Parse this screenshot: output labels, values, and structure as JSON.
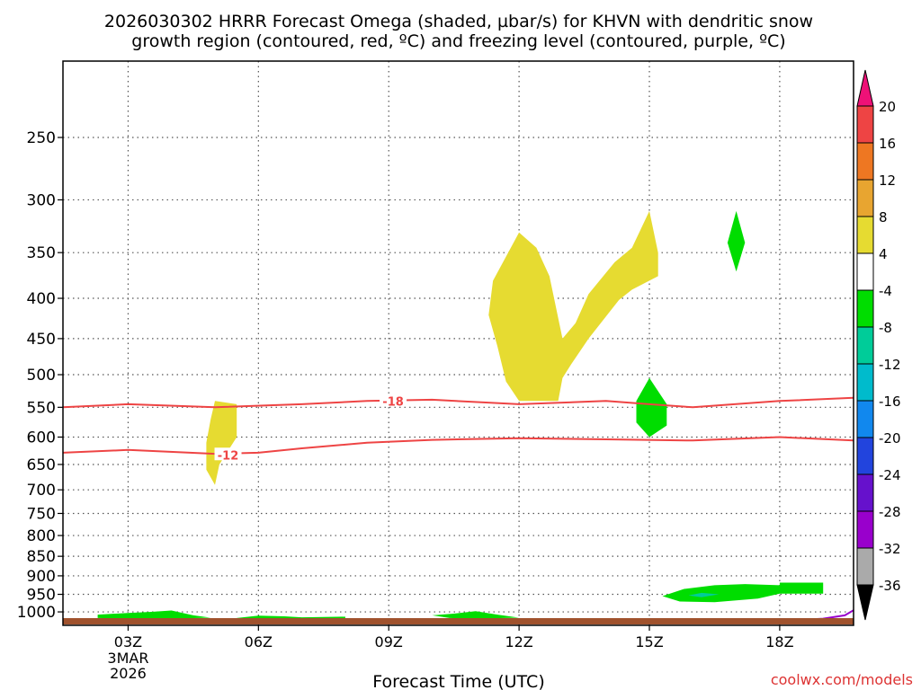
{
  "title_line1": "2026030302 HRRR Forecast Omega (shaded, µbar/s) for KHVN with dendritic snow",
  "title_line2": "growth region (contoured, red, ºC) and freezing level (contoured, purple, ºC)",
  "credit": "coolwx.com/models",
  "colors": {
    "frame": "#000000",
    "grid": "#555555",
    "dgz_contour": "#ee4444",
    "freezing_level": "#9900cc",
    "ground": "#a0522d",
    "omega_pos_4_8": "#e6db31",
    "omega_neg_4_8": "#00dd00",
    "omega_neg_8_12": "#00cc99"
  },
  "chart_data": {
    "type": "heatmap",
    "xlabel": "Forecast Time (UTC)",
    "ylabel": "",
    "x_unit": "hours after 2026-03-03 03Z",
    "x_range": [
      1.5,
      19.7
    ],
    "x_ticks": [
      {
        "value": 3,
        "label": "03Z",
        "extra": [
          "3MAR",
          "2026"
        ]
      },
      {
        "value": 6,
        "label": "06Z"
      },
      {
        "value": 9,
        "label": "09Z"
      },
      {
        "value": 12,
        "label": "12Z"
      },
      {
        "value": 15,
        "label": "15Z"
      },
      {
        "value": 18,
        "label": "18Z"
      }
    ],
    "y_unit": "pressure (hPa), log scale, inverted",
    "y_range": [
      1040,
      200
    ],
    "y_ticks": [
      250,
      300,
      350,
      400,
      450,
      500,
      550,
      600,
      650,
      700,
      750,
      800,
      850,
      900,
      950,
      1000
    ],
    "grid": true,
    "colorbar": {
      "levels": [
        20,
        16,
        12,
        8,
        4,
        -4,
        -8,
        -12,
        -16,
        -20,
        -24,
        -28,
        -32,
        -36
      ],
      "colors": [
        "#ee1177",
        "#ee4444",
        "#ee7722",
        "#e8a530",
        "#e6db31",
        "#ffffff",
        "#00dd00",
        "#00cc99",
        "#00bbcc",
        "#1188ee",
        "#2244dd",
        "#6611cc",
        "#9900cc",
        "#aaaaaa",
        "#000000"
      ]
    },
    "contours": [
      {
        "label": "-18",
        "label_at": [
          9.1,
          540
        ],
        "points": [
          [
            1.5,
            550
          ],
          [
            3,
            545
          ],
          [
            5,
            550
          ],
          [
            7,
            545
          ],
          [
            8.5,
            540
          ],
          [
            10,
            538
          ],
          [
            12,
            545
          ],
          [
            14,
            540
          ],
          [
            15,
            545
          ],
          [
            16,
            550
          ],
          [
            18,
            540
          ],
          [
            19.7,
            535
          ]
        ]
      },
      {
        "label": "-12",
        "label_at": [
          5.3,
          632
        ],
        "points": [
          [
            1.5,
            628
          ],
          [
            3,
            623
          ],
          [
            5,
            630
          ],
          [
            6,
            628
          ],
          [
            7,
            620
          ],
          [
            8.5,
            610
          ],
          [
            10,
            605
          ],
          [
            12,
            602
          ],
          [
            14,
            604
          ],
          [
            16,
            606
          ],
          [
            18,
            600
          ],
          [
            19.7,
            606
          ]
        ]
      }
    ],
    "freezing_level": [
      [
        16.4,
        1033
      ],
      [
        17,
        1030
      ],
      [
        18,
        1027
      ],
      [
        19,
        1020
      ],
      [
        19.5,
        1010
      ],
      [
        19.7,
        995
      ]
    ],
    "omega_regions": [
      {
        "level": "4 to 8",
        "color": "#e6db31",
        "points": [
          [
            12,
            330
          ],
          [
            12.4,
            345
          ],
          [
            12.7,
            375
          ],
          [
            13,
            450
          ],
          [
            13.3,
            430
          ],
          [
            13.6,
            395
          ],
          [
            14.2,
            360
          ],
          [
            14.6,
            345
          ],
          [
            15,
            310
          ],
          [
            15.2,
            350
          ],
          [
            15.2,
            375
          ],
          [
            14.6,
            390
          ],
          [
            14.3,
            402
          ],
          [
            13.6,
            450
          ],
          [
            13.2,
            485
          ],
          [
            13,
            505
          ],
          [
            12.9,
            540
          ],
          [
            12,
            540
          ],
          [
            11.7,
            510
          ],
          [
            11.5,
            460
          ],
          [
            11.3,
            420
          ],
          [
            11.4,
            380
          ]
        ]
      },
      {
        "level": "4 to 8",
        "color": "#e6db31",
        "points": [
          [
            5,
            540
          ],
          [
            5.5,
            545
          ],
          [
            5.5,
            600
          ],
          [
            5.1,
            650
          ],
          [
            5,
            690
          ],
          [
            4.8,
            660
          ],
          [
            4.8,
            610
          ],
          [
            4.9,
            570
          ]
        ]
      },
      {
        "level": "-4 to -8",
        "color": "#00dd00",
        "points": [
          [
            15,
            505
          ],
          [
            15.4,
            545
          ],
          [
            15.4,
            580
          ],
          [
            15,
            600
          ],
          [
            14.7,
            575
          ],
          [
            14.7,
            540
          ]
        ]
      },
      {
        "level": "-4 to -8",
        "color": "#00dd00",
        "points": [
          [
            17,
            310
          ],
          [
            17.2,
            340
          ],
          [
            17,
            370
          ],
          [
            16.8,
            340
          ]
        ]
      },
      {
        "level": "-4 to -8",
        "color": "#00dd00",
        "points": [
          [
            15.3,
            955
          ],
          [
            15.8,
            935
          ],
          [
            16.5,
            925
          ],
          [
            17.2,
            922
          ],
          [
            18,
            925
          ],
          [
            18,
            918
          ],
          [
            19,
            918
          ],
          [
            19,
            948
          ],
          [
            18,
            948
          ],
          [
            17.5,
            962
          ],
          [
            16.5,
            972
          ],
          [
            15.7,
            970
          ]
        ]
      },
      {
        "level": "-8 to -12",
        "color": "#00cc99",
        "points": [
          [
            15.9,
            953
          ],
          [
            16.2,
            946
          ],
          [
            16.6,
            950
          ],
          [
            16.2,
            958
          ]
        ]
      },
      {
        "level": "-4 to -8",
        "color": "#00dd00",
        "points": [
          [
            2.3,
            1008
          ],
          [
            3,
            1003
          ],
          [
            3.5,
            1000
          ],
          [
            4,
            996
          ],
          [
            4.5,
            1010
          ],
          [
            4.9,
            1017
          ],
          [
            4,
            1020
          ],
          [
            3,
            1020
          ],
          [
            2.3,
            1018
          ]
        ]
      },
      {
        "level": "-4 to -8",
        "color": "#00dd00",
        "points": [
          [
            5.5,
            1018
          ],
          [
            6,
            1011
          ],
          [
            6.6,
            1013
          ],
          [
            7,
            1016
          ],
          [
            8,
            1014
          ],
          [
            8,
            1019
          ],
          [
            7,
            1021
          ],
          [
            6,
            1022
          ],
          [
            5.5,
            1022
          ]
        ]
      },
      {
        "level": "-4 to -8",
        "color": "#00dd00",
        "points": [
          [
            10,
            1010
          ],
          [
            10.5,
            1005
          ],
          [
            11,
            998
          ],
          [
            11.5,
            1008
          ],
          [
            12,
            1017
          ],
          [
            11,
            1020
          ],
          [
            10.4,
            1018
          ]
        ]
      }
    ]
  }
}
